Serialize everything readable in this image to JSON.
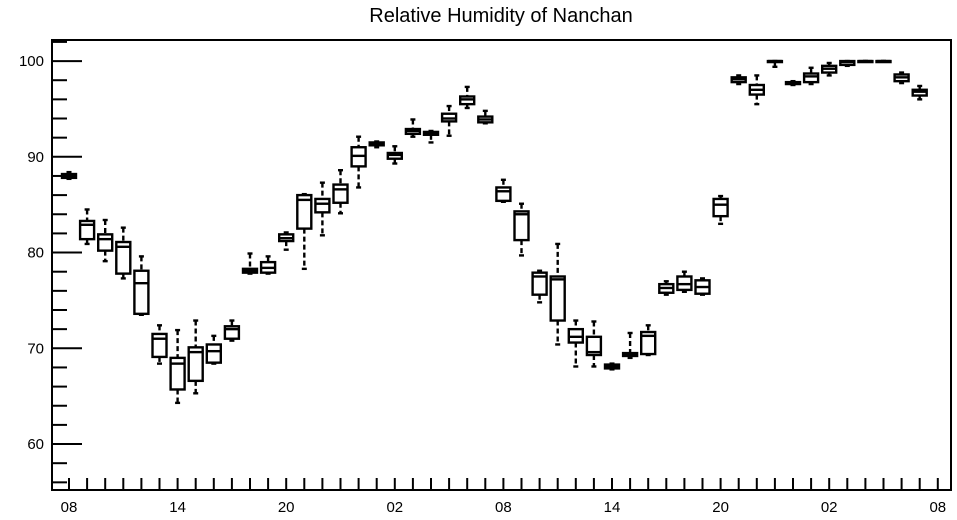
{
  "chart_data": {
    "type": "box",
    "title": "Relative Humidity of Nanchan",
    "xlabel": "",
    "ylabel": "",
    "ylim": [
      55.2,
      102.2
    ],
    "y_ticks": [
      60,
      70,
      80,
      90,
      100
    ],
    "x_ticks": [
      {
        "hour": 0,
        "label": "08"
      },
      {
        "hour": 6,
        "label": "14"
      },
      {
        "hour": 12,
        "label": "20"
      },
      {
        "hour": 18,
        "label": "02"
      },
      {
        "hour": 24,
        "label": "08"
      },
      {
        "hour": 30,
        "label": "14"
      },
      {
        "hour": 36,
        "label": "20"
      },
      {
        "hour": 42,
        "label": "02"
      },
      {
        "hour": 48,
        "label": "08"
      }
    ],
    "boxes": [
      {
        "hour": 0,
        "min": 87.7,
        "q1": 87.8,
        "median": 88.0,
        "q3": 88.2,
        "max": 88.4
      },
      {
        "hour": 1,
        "min": 80.9,
        "q1": 81.4,
        "median": 82.9,
        "q3": 83.3,
        "max": 84.5
      },
      {
        "hour": 2,
        "min": 79.1,
        "q1": 80.2,
        "median": 81.4,
        "q3": 81.9,
        "max": 83.4
      },
      {
        "hour": 3,
        "min": 77.3,
        "q1": 77.8,
        "median": 80.6,
        "q3": 81.1,
        "max": 82.6
      },
      {
        "hour": 4,
        "min": 73.5,
        "q1": 73.6,
        "median": 76.8,
        "q3": 78.1,
        "max": 79.6
      },
      {
        "hour": 5,
        "min": 68.4,
        "q1": 69.1,
        "median": 71.0,
        "q3": 71.5,
        "max": 72.4
      },
      {
        "hour": 6,
        "min": 64.3,
        "q1": 65.7,
        "median": 68.4,
        "q3": 69.0,
        "max": 71.9
      },
      {
        "hour": 7,
        "min": 65.3,
        "q1": 66.6,
        "median": 69.6,
        "q3": 70.1,
        "max": 72.9
      },
      {
        "hour": 8,
        "min": 68.4,
        "q1": 68.5,
        "median": 69.7,
        "q3": 70.4,
        "max": 71.3
      },
      {
        "hour": 9,
        "min": 70.8,
        "q1": 71.0,
        "median": 72.0,
        "q3": 72.3,
        "max": 72.9
      },
      {
        "hour": 10,
        "min": 77.8,
        "q1": 77.9,
        "median": 78.1,
        "q3": 78.3,
        "max": 79.9
      },
      {
        "hour": 11,
        "min": 77.8,
        "q1": 77.9,
        "median": 78.4,
        "q3": 79.0,
        "max": 79.6
      },
      {
        "hour": 12,
        "min": 80.3,
        "q1": 81.2,
        "median": 81.5,
        "q3": 81.9,
        "max": 82.1
      },
      {
        "hour": 13,
        "min": 78.3,
        "q1": 82.5,
        "median": 85.5,
        "q3": 86.0,
        "max": 86.1
      },
      {
        "hour": 14,
        "min": 81.8,
        "q1": 84.2,
        "median": 85.1,
        "q3": 85.6,
        "max": 87.3
      },
      {
        "hour": 15,
        "min": 84.1,
        "q1": 85.2,
        "median": 86.6,
        "q3": 87.1,
        "max": 88.6
      },
      {
        "hour": 16,
        "min": 86.8,
        "q1": 89.0,
        "median": 90.1,
        "q3": 91.0,
        "max": 92.1
      },
      {
        "hour": 17,
        "min": 91.0,
        "q1": 91.2,
        "median": 91.3,
        "q3": 91.5,
        "max": 91.6
      },
      {
        "hour": 18,
        "min": 89.3,
        "q1": 89.8,
        "median": 90.2,
        "q3": 90.4,
        "max": 91.1
      },
      {
        "hour": 19,
        "min": 92.1,
        "q1": 92.4,
        "median": 92.7,
        "q3": 92.9,
        "max": 93.9
      },
      {
        "hour": 20,
        "min": 91.5,
        "q1": 92.3,
        "median": 92.5,
        "q3": 92.6,
        "max": 92.7
      },
      {
        "hour": 21,
        "min": 92.2,
        "q1": 93.7,
        "median": 94.0,
        "q3": 94.5,
        "max": 95.3
      },
      {
        "hour": 22,
        "min": 95.1,
        "q1": 95.5,
        "median": 96.0,
        "q3": 96.3,
        "max": 97.3
      },
      {
        "hour": 23,
        "min": 93.5,
        "q1": 93.6,
        "median": 93.9,
        "q3": 94.2,
        "max": 94.8
      },
      {
        "hour": 24,
        "min": 85.3,
        "q1": 85.4,
        "median": 86.4,
        "q3": 86.8,
        "max": 87.6
      },
      {
        "hour": 25,
        "min": 79.7,
        "q1": 81.3,
        "median": 84.0,
        "q3": 84.3,
        "max": 85.1
      },
      {
        "hour": 26,
        "min": 74.8,
        "q1": 75.6,
        "median": 77.5,
        "q3": 77.9,
        "max": 78.1
      },
      {
        "hour": 27,
        "min": 70.4,
        "q1": 72.9,
        "median": 77.2,
        "q3": 77.5,
        "max": 80.9
      },
      {
        "hour": 28,
        "min": 68.1,
        "q1": 70.6,
        "median": 71.2,
        "q3": 72.0,
        "max": 72.9
      },
      {
        "hour": 29,
        "min": 68.1,
        "q1": 69.3,
        "median": 69.6,
        "q3": 71.2,
        "max": 72.8
      },
      {
        "hour": 30,
        "min": 67.8,
        "q1": 67.9,
        "median": 68.1,
        "q3": 68.3,
        "max": 68.4
      },
      {
        "hour": 31,
        "min": 69.0,
        "q1": 69.2,
        "median": 69.4,
        "q3": 69.5,
        "max": 71.6
      },
      {
        "hour": 32,
        "min": 69.3,
        "q1": 69.4,
        "median": 71.3,
        "q3": 71.7,
        "max": 72.4
      },
      {
        "hour": 33,
        "min": 75.6,
        "q1": 75.8,
        "median": 76.3,
        "q3": 76.7,
        "max": 77.0
      },
      {
        "hour": 34,
        "min": 75.9,
        "q1": 76.1,
        "median": 76.7,
        "q3": 77.5,
        "max": 78.0
      },
      {
        "hour": 35,
        "min": 75.6,
        "q1": 75.7,
        "median": 76.4,
        "q3": 77.1,
        "max": 77.3
      },
      {
        "hour": 36,
        "min": 83.0,
        "q1": 83.8,
        "median": 85.0,
        "q3": 85.6,
        "max": 85.9
      },
      {
        "hour": 37,
        "min": 97.6,
        "q1": 97.8,
        "median": 98.1,
        "q3": 98.3,
        "max": 98.5
      },
      {
        "hour": 38,
        "min": 95.5,
        "q1": 96.5,
        "median": 97.0,
        "q3": 97.5,
        "max": 98.5
      },
      {
        "hour": 39,
        "min": 99.4,
        "q1": 99.9,
        "median": 100.0,
        "q3": 100.0,
        "max": 100.0
      },
      {
        "hour": 40,
        "min": 97.5,
        "q1": 97.6,
        "median": 97.7,
        "q3": 97.8,
        "max": 97.9
      },
      {
        "hour": 41,
        "min": 97.6,
        "q1": 97.8,
        "median": 98.4,
        "q3": 98.7,
        "max": 99.3
      },
      {
        "hour": 42,
        "min": 98.5,
        "q1": 98.8,
        "median": 99.2,
        "q3": 99.5,
        "max": 99.8
      },
      {
        "hour": 43,
        "min": 99.5,
        "q1": 99.6,
        "median": 99.9,
        "q3": 100.0,
        "max": 100.0
      },
      {
        "hour": 44,
        "min": 100.0,
        "q1": 100.0,
        "median": 100.0,
        "q3": 100.0,
        "max": 100.0
      },
      {
        "hour": 45,
        "min": 100.0,
        "q1": 100.0,
        "median": 100.0,
        "q3": 100.0,
        "max": 100.0
      },
      {
        "hour": 46,
        "min": 97.7,
        "q1": 97.9,
        "median": 98.3,
        "q3": 98.6,
        "max": 98.8
      },
      {
        "hour": 47,
        "min": 96.0,
        "q1": 96.4,
        "median": 96.8,
        "q3": 97.0,
        "max": 97.4
      }
    ],
    "grid": false,
    "legend": "none"
  }
}
